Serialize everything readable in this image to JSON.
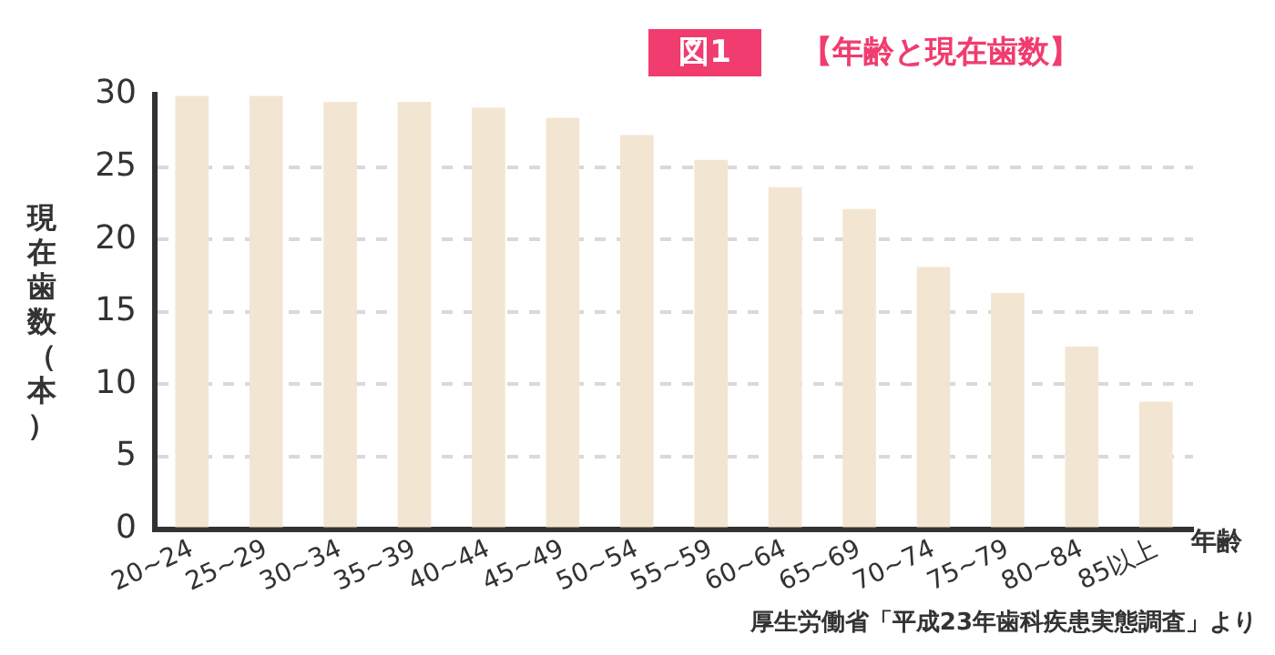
{
  "chart_data": {
    "type": "bar",
    "title": "図1",
    "subtitle": "【年齢と現在歯数】",
    "xlabel": "年齢",
    "ylabel": "現在歯数（本）",
    "annotations": [
      "厚生労働省「平成23年歯科疾患実態調査」より"
    ],
    "categories": [
      "20~24",
      "25~29",
      "30~34",
      "35~39",
      "40~44",
      "45~49",
      "50~54",
      "55~59",
      "60~64",
      "65~69",
      "70~74",
      "75~79",
      "80~84",
      "85以上"
    ],
    "values": [
      29.9,
      29.9,
      29.5,
      29.5,
      29.1,
      28.4,
      27.2,
      25.5,
      23.6,
      22.1,
      18.1,
      16.3,
      12.6,
      8.8
    ],
    "color": "#f2e6d2",
    "ylim": [
      0,
      30
    ],
    "yticks": [
      0,
      5,
      10,
      15,
      20,
      25,
      30
    ],
    "grid": "y",
    "legend": false
  }
}
